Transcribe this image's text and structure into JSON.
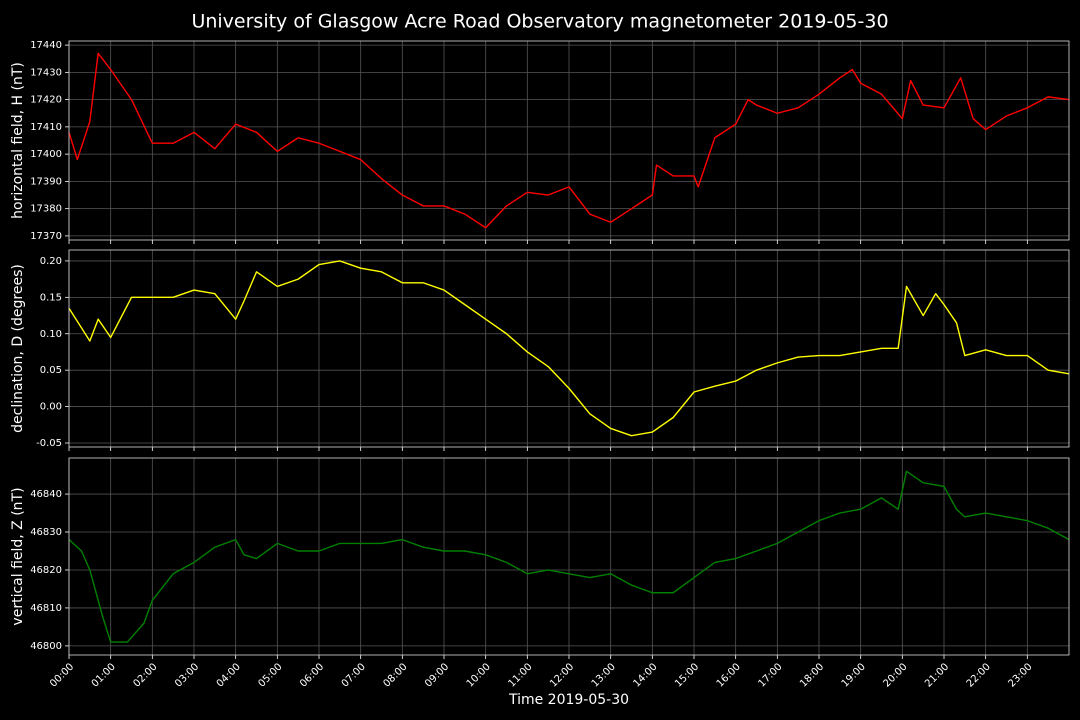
{
  "chart_data": [
    {
      "type": "line",
      "title": "University of Glasgow Acre Road Observatory magnetometer 2019-05-30",
      "ylabel": "horizontal field, H (nT)",
      "color": "#ff0000",
      "grid": true,
      "xlim": [
        0,
        24
      ],
      "ylim": [
        17368.5,
        17441.5
      ],
      "yticks": [
        17370,
        17380,
        17390,
        17400,
        17410,
        17420,
        17430,
        17440
      ],
      "x": [
        0,
        0.2,
        0.5,
        0.7,
        1,
        1.5,
        2,
        2.5,
        3,
        3.5,
        4,
        4.5,
        5,
        5.5,
        6,
        6.5,
        7,
        7.5,
        8,
        8.5,
        9,
        9.5,
        10,
        10.5,
        11,
        11.5,
        12,
        12.5,
        13,
        13.5,
        14,
        14.1,
        14.5,
        15,
        15.1,
        15.5,
        16,
        16.3,
        16.5,
        17,
        17.5,
        18,
        18.5,
        18.8,
        19,
        19.5,
        20,
        20.2,
        20.5,
        21,
        21.4,
        21.7,
        22,
        22.5,
        23,
        23.5,
        24
      ],
      "values": [
        17408,
        17398,
        17412,
        17437,
        17431,
        17420,
        17404,
        17404,
        17408,
        17402,
        17411,
        17408,
        17401,
        17406,
        17404,
        17401,
        17398,
        17391,
        17385,
        17381,
        17381,
        17378,
        17373,
        17381,
        17386,
        17385,
        17388,
        17378,
        17375,
        17380,
        17385,
        17396,
        17392,
        17392,
        17388,
        17406,
        17411,
        17420,
        17418,
        17415,
        17417,
        17422,
        17428,
        17431,
        17426,
        17422,
        17413,
        17427,
        17418,
        17417,
        17428,
        17413,
        17409,
        17414,
        17417,
        17421,
        17420
      ]
    },
    {
      "type": "line",
      "ylabel": "declination, D (degrees)",
      "color": "#ffff00",
      "grid": true,
      "xlim": [
        0,
        24
      ],
      "ylim": [
        -0.0555,
        0.215
      ],
      "yticks": [
        -0.05,
        {
          "value": 0,
          "label": "0.00"
        },
        0.05,
        {
          "value": 0.1,
          "label": "0.10"
        },
        0.15,
        {
          "value": 0.2,
          "label": "0.20"
        }
      ],
      "x": [
        0,
        0.5,
        0.7,
        1,
        1.5,
        2,
        2.5,
        3,
        3.5,
        4,
        4.2,
        4.5,
        5,
        5.5,
        6,
        6.5,
        7,
        7.5,
        8,
        8.5,
        9,
        9.5,
        10,
        10.5,
        11,
        11.5,
        12,
        12.5,
        13,
        13.5,
        14,
        14.5,
        15,
        15.5,
        16,
        16.5,
        17,
        17.5,
        18,
        18.5,
        19,
        19.5,
        19.9,
        20.1,
        20.5,
        20.8,
        21,
        21.3,
        21.5,
        22,
        22.5,
        23,
        23.5,
        24
      ],
      "values": [
        0.135,
        0.09,
        0.12,
        0.095,
        0.15,
        0.15,
        0.15,
        0.16,
        0.155,
        0.12,
        0.145,
        0.185,
        0.165,
        0.175,
        0.195,
        0.2,
        0.19,
        0.185,
        0.17,
        0.17,
        0.16,
        0.14,
        0.12,
        0.1,
        0.075,
        0.055,
        0.025,
        -0.01,
        -0.03,
        -0.04,
        -0.035,
        -0.015,
        0.02,
        0.028,
        0.035,
        0.05,
        0.06,
        0.068,
        0.07,
        0.07,
        0.075,
        0.08,
        0.08,
        0.165,
        0.125,
        0.155,
        0.14,
        0.115,
        0.07,
        0.078,
        0.07,
        0.07,
        0.05,
        0.045
      ]
    },
    {
      "type": "line",
      "ylabel": "vertical field, Z (nT)",
      "xlabel": "Time 2019-05-30",
      "color": "#008000",
      "grid": true,
      "xlim": [
        0,
        24
      ],
      "ylim": [
        46797.6,
        46849.5
      ],
      "yticks": [
        46800,
        46810,
        46820,
        46830,
        46840
      ],
      "xticks": [
        {
          "value": 0,
          "label": "00:00"
        },
        {
          "value": 1,
          "label": "01:00"
        },
        {
          "value": 2,
          "label": "02:00"
        },
        {
          "value": 3,
          "label": "03:00"
        },
        {
          "value": 4,
          "label": "04:00"
        },
        {
          "value": 5,
          "label": "05:00"
        },
        {
          "value": 6,
          "label": "06:00"
        },
        {
          "value": 7,
          "label": "07:00"
        },
        {
          "value": 8,
          "label": "08:00"
        },
        {
          "value": 9,
          "label": "09:00"
        },
        {
          "value": 10,
          "label": "10:00"
        },
        {
          "value": 11,
          "label": "11:00"
        },
        {
          "value": 12,
          "label": "12:00"
        },
        {
          "value": 13,
          "label": "13:00"
        },
        {
          "value": 14,
          "label": "14:00"
        },
        {
          "value": 15,
          "label": "15:00"
        },
        {
          "value": 16,
          "label": "16:00"
        },
        {
          "value": 17,
          "label": "17:00"
        },
        {
          "value": 18,
          "label": "18:00"
        },
        {
          "value": 19,
          "label": "19:00"
        },
        {
          "value": 20,
          "label": "20:00"
        },
        {
          "value": 21,
          "label": "21:00"
        },
        {
          "value": 22,
          "label": "22:00"
        },
        {
          "value": 23,
          "label": "23:00"
        }
      ],
      "x": [
        0,
        0.3,
        0.5,
        0.8,
        1,
        1.4,
        1.8,
        2,
        2.5,
        3,
        3.5,
        4,
        4.2,
        4.5,
        5,
        5.5,
        6,
        6.5,
        7,
        7.5,
        8,
        8.5,
        9,
        9.5,
        10,
        10.5,
        11,
        11.5,
        12,
        12.5,
        13,
        13.5,
        14,
        14.5,
        15,
        15.5,
        16,
        16.5,
        17,
        17.5,
        18,
        18.5,
        19,
        19.5,
        19.9,
        20.1,
        20.5,
        21,
        21.3,
        21.5,
        22,
        22.5,
        23,
        23.5,
        24
      ],
      "values": [
        46828,
        46825,
        46820,
        46808,
        46801,
        46801,
        46806,
        46812,
        46819,
        46822,
        46826,
        46828,
        46824,
        46823,
        46827,
        46825,
        46825,
        46827,
        46827,
        46827,
        46828,
        46826,
        46825,
        46825,
        46824,
        46822,
        46819,
        46820,
        46819,
        46818,
        46819,
        46816,
        46814,
        46814,
        46818,
        46822,
        46823,
        46825,
        46827,
        46830,
        46833,
        46835,
        46836,
        46839,
        46836,
        46846,
        46843,
        46842,
        46836,
        46834,
        46835,
        46834,
        46833,
        46831,
        46828
      ]
    }
  ]
}
